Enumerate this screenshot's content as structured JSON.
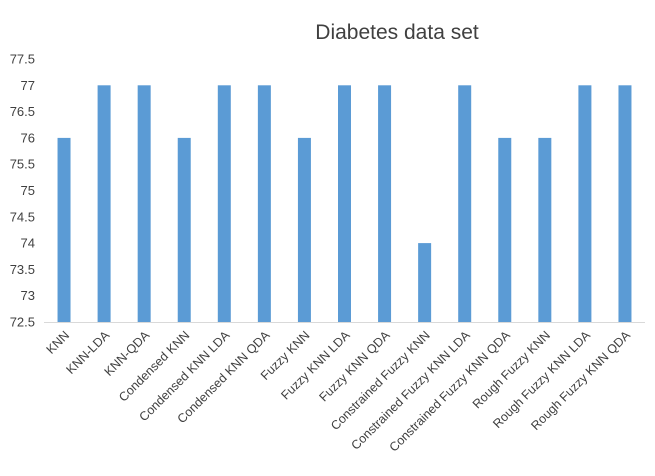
{
  "chart_data": {
    "type": "bar",
    "title": "Diabetes data set",
    "xlabel": "",
    "ylabel": "",
    "ylim": [
      72.5,
      77.5
    ],
    "yticks": [
      72.5,
      73,
      73.5,
      74,
      74.5,
      75,
      75.5,
      76,
      76.5,
      77,
      77.5
    ],
    "ytick_labels": [
      "72.5",
      "73",
      "73.5",
      "74",
      "74.5",
      "75",
      "75.5",
      "76",
      "76.5",
      "77",
      "77.5"
    ],
    "grid": false,
    "legend": "none",
    "bar_color": "#5B9BD5",
    "categories": [
      "KNN",
      "KNN-LDA",
      "KNN-QDA",
      "Condensed KNN",
      "Condensed KNN LDA",
      "Condensed KNN QDA",
      "Fuzzy KNN",
      "Fuzzy KNN LDA",
      "Fuzzy KNN QDA",
      "Constrained Fuzzy KNN",
      "Constrained Fuzzy KNN LDA",
      "Constrained Fuzzy KNN QDA",
      "Rough Fuzzy KNN",
      "Rough Fuzzy KNN LDA",
      "Rough Fuzzy KNN QDA"
    ],
    "values": [
      76,
      77,
      77,
      76,
      77,
      77,
      76,
      77,
      77,
      74,
      77,
      76,
      76,
      77,
      77
    ]
  }
}
